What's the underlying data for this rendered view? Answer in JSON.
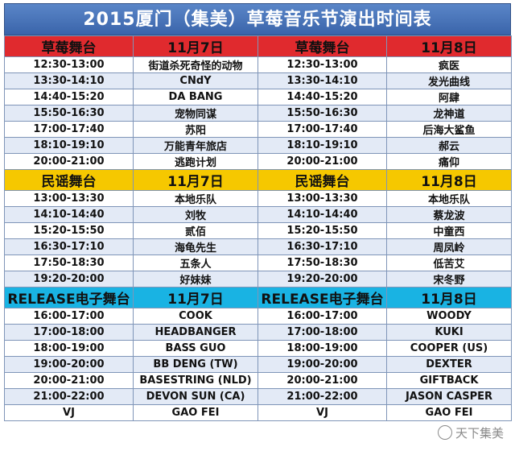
{
  "title": "2015厦门（集美）草莓音乐节演出时间表",
  "sections": [
    {
      "theme": "red",
      "left_stage": "草莓舞台",
      "left_date": "11月7日",
      "right_stage": "草莓舞台",
      "right_date": "11月8日",
      "rows": [
        {
          "lt": "12:30-13:00",
          "la": "街道杀死奇怪的动物",
          "rt": "12:30-13:00",
          "ra": "疯医"
        },
        {
          "lt": "13:30-14:10",
          "la": "CNdY",
          "rt": "13:30-14:10",
          "ra": "发光曲线"
        },
        {
          "lt": "14:40-15:20",
          "la": "DA BANG",
          "rt": "14:40-15:20",
          "ra": "阿肆"
        },
        {
          "lt": "15:50-16:30",
          "la": "宠物同谋",
          "rt": "15:50-16:30",
          "ra": "龙神道"
        },
        {
          "lt": "17:00-17:40",
          "la": "苏阳",
          "rt": "17:00-17:40",
          "ra": "后海大鲨鱼"
        },
        {
          "lt": "18:10-19:10",
          "la": "万能青年旅店",
          "rt": "18:10-19:10",
          "ra": "郝云"
        },
        {
          "lt": "20:00-21:00",
          "la": "逃跑计划",
          "rt": "20:00-21:00",
          "ra": "痛仰"
        }
      ]
    },
    {
      "theme": "yellow",
      "left_stage": "民谣舞台",
      "left_date": "11月7日",
      "right_stage": "民谣舞台",
      "right_date": "11月8日",
      "rows": [
        {
          "lt": "13:00-13:30",
          "la": "本地乐队",
          "rt": "13:00-13:30",
          "ra": "本地乐队"
        },
        {
          "lt": "14:10-14:40",
          "la": "刘牧",
          "rt": "14:10-14:40",
          "ra": "蔡龙波"
        },
        {
          "lt": "15:20-15:50",
          "la": "贰佰",
          "rt": "15:20-15:50",
          "ra": "中童西"
        },
        {
          "lt": "16:30-17:10",
          "la": "海龟先生",
          "rt": "16:30-17:10",
          "ra": "周凤岭"
        },
        {
          "lt": "17:50-18:30",
          "la": "五条人",
          "rt": "17:50-18:30",
          "ra": "低苦艾"
        },
        {
          "lt": "19:20-20:00",
          "la": "好妹妹",
          "rt": "19:20-20:00",
          "ra": "宋冬野"
        }
      ]
    },
    {
      "theme": "cyan",
      "left_stage": "RELEASE电子舞台",
      "left_date": "11月7日",
      "right_stage": "RELEASE电子舞台",
      "right_date": "11月8日",
      "rows": [
        {
          "lt": "16:00-17:00",
          "la": "COOK",
          "rt": "16:00-17:00",
          "ra": "WOODY"
        },
        {
          "lt": "17:00-18:00",
          "la": "HEADBANGER",
          "rt": "17:00-18:00",
          "ra": "KUKI"
        },
        {
          "lt": "18:00-19:00",
          "la": "BASS GUO",
          "rt": "18:00-19:00",
          "ra": "COOPER (US)"
        },
        {
          "lt": "19:00-20:00",
          "la": "BB DENG (TW)",
          "rt": "19:00-20:00",
          "ra": "DEXTER"
        },
        {
          "lt": "20:00-21:00",
          "la": "BASESTRING (NLD)",
          "rt": "20:00-21:00",
          "ra": "GIFTBACK"
        },
        {
          "lt": "21:00-22:00",
          "la": "DEVON SUN (CA)",
          "rt": "21:00-22:00",
          "ra": "JASON CASPER"
        },
        {
          "lt": "VJ",
          "la": "GAO FEI",
          "rt": "VJ",
          "ra": "GAO FEI"
        }
      ]
    }
  ],
  "watermark": "天下集美",
  "colors": {
    "title_bg": "#4a78bc",
    "red": "#e02a2e",
    "yellow": "#f6c800",
    "cyan": "#19b3e3",
    "row_light": "#e3eaf6"
  }
}
